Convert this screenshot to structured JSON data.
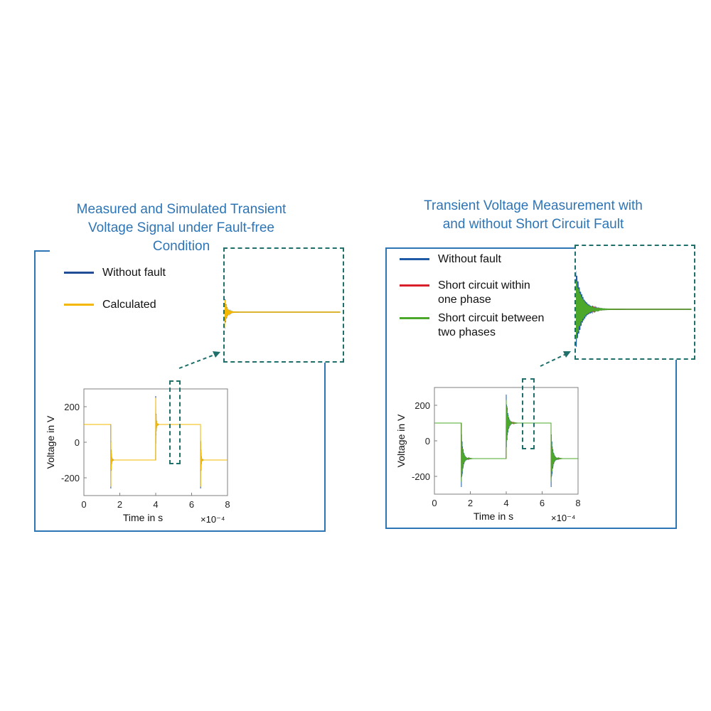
{
  "panels": [
    {
      "title": "Measured and Simulated Transient\nVoltage Signal under Fault-free\nCondition",
      "legend": [
        {
          "label": "Without fault",
          "color": "#1f4e96"
        },
        {
          "label": "Calculated",
          "color": "#f5b800"
        }
      ]
    },
    {
      "title": "Transient Voltage Measurement with\nand without Short Circuit Fault",
      "legend": [
        {
          "label": "Without fault",
          "color": "#1f5aa6"
        },
        {
          "label": "Short circuit within\none phase",
          "color": "#d9202a"
        },
        {
          "label": "Short circuit between\ntwo phases",
          "color": "#4ca82a"
        }
      ]
    }
  ],
  "chart_data": [
    {
      "type": "line",
      "title": "",
      "xlabel": "Time in s",
      "ylabel": "Voltage in V",
      "x_scale_label": "×10⁻⁴",
      "xlim": [
        0,
        8
      ],
      "ylim": [
        -300,
        300
      ],
      "xticks": [
        0,
        2,
        4,
        6,
        8
      ],
      "yticks": [
        200,
        0,
        -200
      ],
      "x_multiplier": 0.0001,
      "switch_times_x1e-4": [
        1.5,
        4.0,
        6.5
      ],
      "levels_V": [
        100,
        -100,
        100,
        -100
      ],
      "series": [
        {
          "name": "Without fault",
          "color": "#1f4e96",
          "spike_peak_V": 260,
          "ringing": "short"
        },
        {
          "name": "Calculated",
          "color": "#f5b800",
          "spike_peak_V": 250,
          "ringing": "short"
        }
      ],
      "zoom_window_x1e-4": [
        4.7,
        5.3
      ]
    },
    {
      "type": "line",
      "title": "",
      "xlabel": "Time in s",
      "ylabel": "Voltage in V",
      "x_scale_label": "×10⁻⁴",
      "xlim": [
        0,
        8
      ],
      "ylim": [
        -300,
        300
      ],
      "xticks": [
        0,
        2,
        4,
        6,
        8
      ],
      "yticks": [
        200,
        0,
        -200
      ],
      "x_multiplier": 0.0001,
      "switch_times_x1e-4": [
        1.5,
        4.0,
        6.5
      ],
      "levels_V": [
        100,
        -100,
        100,
        -100
      ],
      "series": [
        {
          "name": "Without fault",
          "color": "#1f5aa6",
          "spike_peak_V": 260,
          "ringing": "long"
        },
        {
          "name": "Short circuit within one phase",
          "color": "#d9202a",
          "spike_peak_V": 210,
          "ringing": "long"
        },
        {
          "name": "Short circuit between two phases",
          "color": "#4ca82a",
          "spike_peak_V": 230,
          "ringing": "long"
        }
      ],
      "zoom_window_x1e-4": [
        4.8,
        5.6
      ]
    }
  ]
}
